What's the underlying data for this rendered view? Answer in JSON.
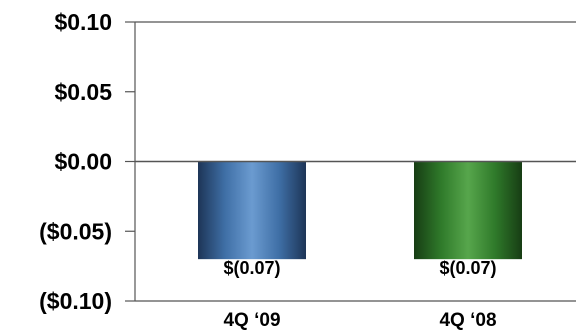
{
  "chart_data": {
    "type": "bar",
    "title": "",
    "xlabel": "",
    "ylabel": "",
    "categories": [
      "4Q ‘09",
      "4Q ‘08"
    ],
    "values": [
      -0.07,
      -0.07
    ],
    "data_labels": [
      "$(0.07)",
      "$(0.07)"
    ],
    "ylim": [
      -0.1,
      0.1
    ],
    "yticks": [
      0.1,
      0.05,
      0.0,
      -0.05,
      -0.1
    ],
    "ytick_labels": [
      "$0.10",
      "$0.05",
      "$0.00",
      "($0.05)",
      "($0.10)"
    ],
    "grid": false,
    "legend": "none",
    "colors": [
      "#3f6fa6",
      "#2f7a2a"
    ]
  }
}
